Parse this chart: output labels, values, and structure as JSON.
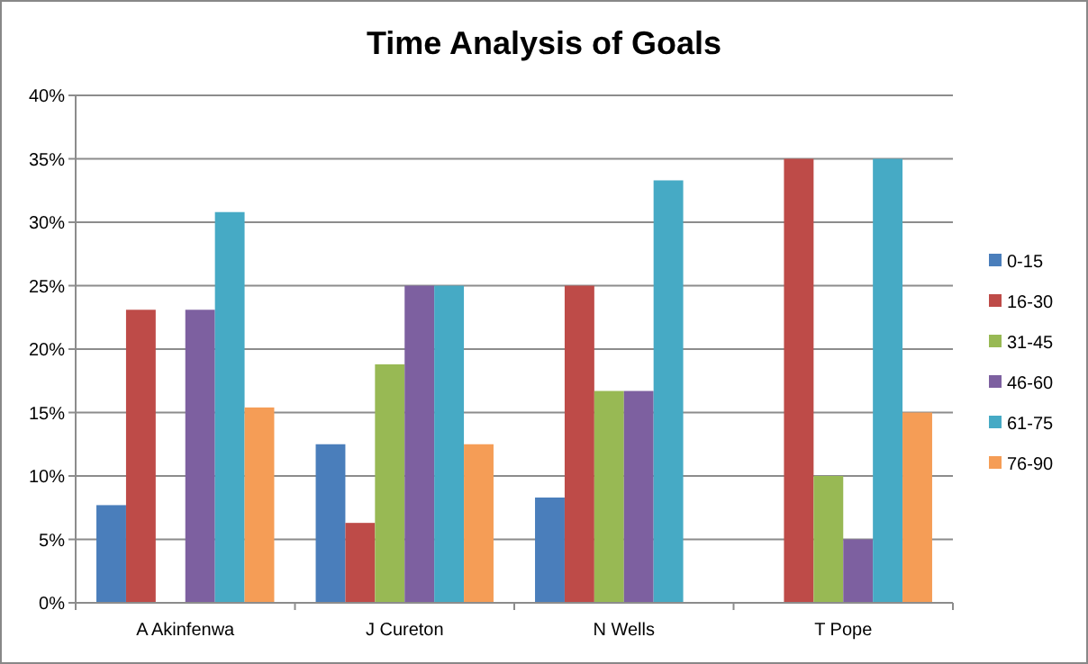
{
  "chart_data": {
    "type": "bar",
    "title": "Time Analysis of Goals",
    "categories": [
      "A Akinfenwa",
      "J Cureton",
      "N Wells",
      "T Pope"
    ],
    "series": [
      {
        "name": "0-15",
        "color": "#4a7ebb",
        "values": [
          7.7,
          12.5,
          8.3,
          0
        ]
      },
      {
        "name": "16-30",
        "color": "#be4b48",
        "values": [
          23.1,
          6.3,
          25,
          35
        ]
      },
      {
        "name": "31-45",
        "color": "#98b954",
        "values": [
          0,
          18.8,
          16.7,
          10
        ]
      },
      {
        "name": "46-60",
        "color": "#7d60a0",
        "values": [
          23.1,
          25,
          16.7,
          5
        ]
      },
      {
        "name": "61-75",
        "color": "#46aac5",
        "values": [
          30.8,
          25,
          33.3,
          35
        ]
      },
      {
        "name": "76-90",
        "color": "#f59d56",
        "values": [
          15.4,
          12.5,
          0,
          15
        ]
      }
    ],
    "ylim": [
      0,
      40
    ],
    "yticks": [
      {
        "value": 0,
        "label": "0%"
      },
      {
        "value": 5,
        "label": "5%"
      },
      {
        "value": 10,
        "label": "10%"
      },
      {
        "value": 15,
        "label": "15%"
      },
      {
        "value": 20,
        "label": "20%"
      },
      {
        "value": 25,
        "label": "25%"
      },
      {
        "value": 30,
        "label": "30%"
      },
      {
        "value": 35,
        "label": "35%"
      },
      {
        "value": 40,
        "label": "40%"
      }
    ],
    "grid": "y",
    "legend": "right"
  }
}
